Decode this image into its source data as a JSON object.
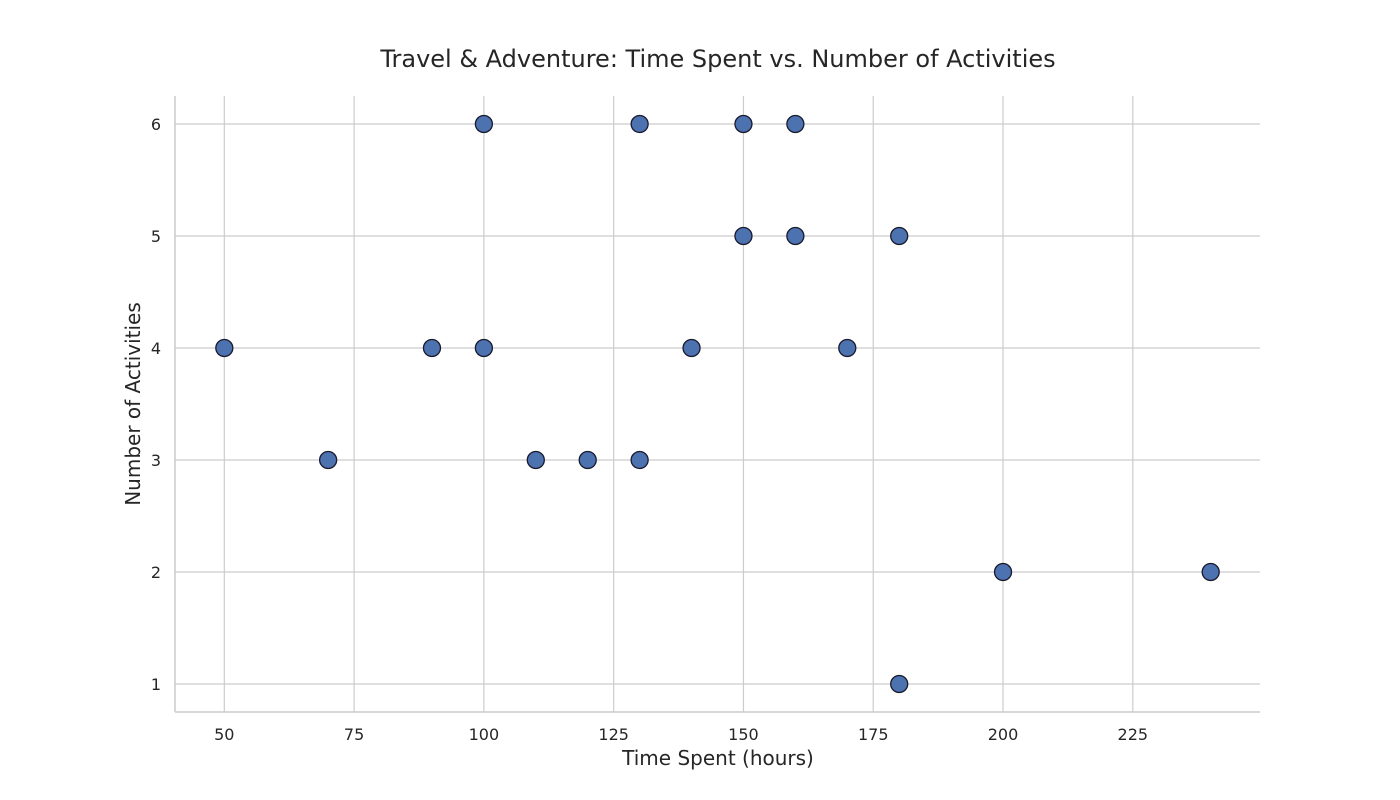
{
  "chart_data": {
    "type": "scatter",
    "title": "Travel & Adventure: Time Spent vs. Number of Activities",
    "xlabel": "Time Spent (hours)",
    "ylabel": "Number of Activities",
    "xlim": [
      40.5,
      249.5
    ],
    "ylim": [
      0.75,
      6.25
    ],
    "xticks": [
      50,
      75,
      100,
      125,
      150,
      175,
      200,
      225
    ],
    "yticks": [
      1,
      2,
      3,
      4,
      5,
      6
    ],
    "grid": true,
    "legend": "none",
    "points": [
      {
        "x": 50,
        "y": 4
      },
      {
        "x": 70,
        "y": 3
      },
      {
        "x": 90,
        "y": 4
      },
      {
        "x": 100,
        "y": 6
      },
      {
        "x": 100,
        "y": 4
      },
      {
        "x": 110,
        "y": 3
      },
      {
        "x": 120,
        "y": 3
      },
      {
        "x": 130,
        "y": 6
      },
      {
        "x": 130,
        "y": 3
      },
      {
        "x": 140,
        "y": 4
      },
      {
        "x": 150,
        "y": 6
      },
      {
        "x": 150,
        "y": 5
      },
      {
        "x": 160,
        "y": 6
      },
      {
        "x": 160,
        "y": 5
      },
      {
        "x": 170,
        "y": 4
      },
      {
        "x": 180,
        "y": 5
      },
      {
        "x": 180,
        "y": 1
      },
      {
        "x": 200,
        "y": 2
      },
      {
        "x": 240,
        "y": 2
      }
    ],
    "colors": {
      "marker_fill": "#4c72b0",
      "marker_edge": "#1a1a2e"
    }
  }
}
